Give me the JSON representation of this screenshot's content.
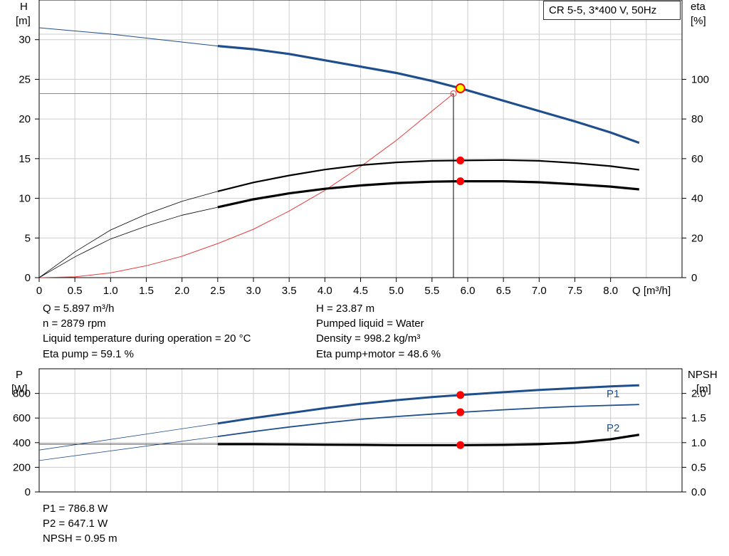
{
  "legend_title": "CR 5-5, 3*400 V, 50Hz",
  "colors": {
    "blue": "#1f4e8c",
    "red_curve": "#e83c3c",
    "dot": "#ff0000",
    "duty_fill": "#ffff00",
    "grid": "#cccccc"
  },
  "top": {
    "left_axis_label": [
      "H",
      "[m]"
    ],
    "right_axis_label": [
      "eta",
      "[%]"
    ],
    "x_unit_label": "Q [m³/h]"
  },
  "bottom": {
    "left_axis_label": [
      "P",
      "[W]"
    ],
    "right_axis_label": [
      "NPSH",
      "[m]"
    ],
    "p1_label": "P1",
    "p2_label": "P2"
  },
  "info_left": [
    "Q = 5.897 m³/h",
    "n = 2879 rpm",
    "Liquid temperature during operation = 20 °C",
    "Eta pump = 59.1 %"
  ],
  "info_right": [
    "H = 23.87 m",
    "Pumped liquid = Water",
    "Density = 998.2 kg/m³",
    "Eta pump+motor = 48.6 %"
  ],
  "info_bottom": [
    "P1 = 786.8 W",
    "P2 = 647.1 W",
    "NPSH = 0.95 m"
  ],
  "chart_data": [
    {
      "type": "line",
      "title": "CR 5-5, 3*400 V, 50Hz",
      "xlabel": "Q [m³/h]",
      "ylabel": "H [m]",
      "y2label": "eta [%]",
      "xlim": [
        0,
        9.0
      ],
      "ylim": [
        0,
        35
      ],
      "y2lim": [
        0,
        140
      ],
      "x_ticks": [
        0,
        0.5,
        1.0,
        1.5,
        2.0,
        2.5,
        3.0,
        3.5,
        4.0,
        4.5,
        5.0,
        5.5,
        6.0,
        6.5,
        7.0,
        7.5,
        8.0
      ],
      "x_tick_labels": [
        "0",
        "0.5",
        "1.0",
        "1.5",
        "2.0",
        "2.5",
        "3.0",
        "3.5",
        "4.0",
        "4.5",
        "5.0",
        "5.5",
        "6.0",
        "6.5",
        "7.0",
        "7.5",
        "8.0"
      ],
      "y_ticks": [
        0,
        5,
        10,
        15,
        20,
        25,
        30
      ],
      "y2_ticks": [
        0,
        20,
        40,
        60,
        80,
        100
      ],
      "grid": true,
      "series": [
        {
          "axis": "left",
          "extrapolated_x": [
            0,
            0.5,
            1.0,
            1.5,
            2.0,
            2.5
          ],
          "extrapolated_y": [
            31.5,
            31.1,
            30.7,
            30.2,
            29.7,
            29.2
          ],
          "x": [
            2.5,
            3.0,
            3.5,
            4.0,
            4.5,
            5.0,
            5.5,
            5.897,
            6.5,
            7.0,
            7.5,
            8.0,
            8.4
          ],
          "y": [
            29.2,
            28.8,
            28.2,
            27.4,
            26.6,
            25.8,
            24.8,
            23.87,
            22.3,
            21.0,
            19.7,
            18.3,
            17.0
          ]
        },
        {
          "axis": "right",
          "extrapolated_x": [
            0,
            0.5,
            1.0,
            1.5,
            2.0,
            2.5
          ],
          "extrapolated_y": [
            0,
            13,
            24,
            32,
            38.5,
            43.5
          ],
          "x": [
            2.5,
            3.0,
            3.5,
            4.0,
            4.5,
            5.0,
            5.5,
            5.897,
            6.5,
            7.0,
            7.5,
            8.0,
            8.4
          ],
          "y": [
            43.5,
            48,
            51.5,
            54.5,
            56.7,
            58.1,
            58.9,
            59.1,
            59.3,
            58.9,
            57.8,
            56.2,
            54.4
          ]
        },
        {
          "axis": "right",
          "extrapolated_x": [
            0,
            0.5,
            1.0,
            1.5,
            2.0,
            2.5
          ],
          "extrapolated_y": [
            0,
            10.5,
            19.5,
            26,
            31.5,
            35.5
          ],
          "x": [
            2.5,
            3.0,
            3.5,
            4.0,
            4.5,
            5.0,
            5.5,
            5.897,
            6.5,
            7.0,
            7.5,
            8.0,
            8.4
          ],
          "y": [
            35.5,
            39.5,
            42.5,
            44.8,
            46.5,
            47.7,
            48.4,
            48.6,
            48.6,
            48.1,
            47.1,
            45.9,
            44.5
          ]
        },
        {
          "axis": "left",
          "thin": true,
          "x": [
            0,
            0.5,
            1.0,
            1.5,
            2.0,
            2.5,
            3.0,
            3.5,
            4.0,
            4.5,
            5.0,
            5.5,
            5.8
          ],
          "y": [
            0,
            0.1,
            0.6,
            1.5,
            2.7,
            4.3,
            6.1,
            8.4,
            11.0,
            14.0,
            17.3,
            21.0,
            23.2
          ]
        }
      ],
      "duty_point": {
        "x": 5.897,
        "h": 23.87,
        "eta_pump": 59.1,
        "eta_total": 48.6
      },
      "reference_line": {
        "x": 5.8,
        "y": 23.2
      }
    },
    {
      "type": "line",
      "ylabel": "P [W]",
      "y2label": "NPSH [m]",
      "xlim": [
        0,
        9.0
      ],
      "ylim": [
        0,
        1000
      ],
      "y2lim": [
        0,
        2.5
      ],
      "y_ticks": [
        0,
        200,
        400,
        600,
        800
      ],
      "y2_ticks": [
        0.0,
        0.5,
        1.0,
        1.5,
        2.0
      ],
      "y2_tick_labels": [
        "0.0",
        "0.5",
        "1.0",
        "1.5",
        "2.0"
      ],
      "grid": true,
      "series": [
        {
          "name": "P1",
          "axis": "left",
          "extrapolated_x": [
            0,
            2.5
          ],
          "extrapolated_y": [
            340,
            556
          ],
          "x": [
            2.5,
            3.0,
            3.5,
            4.0,
            4.5,
            5.0,
            5.5,
            5.897,
            6.5,
            7.0,
            7.5,
            8.0,
            8.4
          ],
          "y": [
            556,
            600,
            640,
            680,
            715,
            745,
            770,
            786.8,
            810,
            828,
            843,
            857,
            866
          ]
        },
        {
          "name": "P2",
          "axis": "left",
          "extrapolated_x": [
            0,
            2.5
          ],
          "extrapolated_y": [
            255,
            450
          ],
          "x": [
            2.5,
            3.0,
            3.5,
            4.0,
            4.5,
            5.0,
            5.5,
            5.897,
            6.5,
            7.0,
            7.5,
            8.0,
            8.4
          ],
          "y": [
            450,
            490,
            527,
            560,
            590,
            612,
            632,
            647.1,
            667,
            682,
            694,
            703,
            710
          ]
        },
        {
          "axis": "right",
          "extrapolated_x": [
            0,
            2.5
          ],
          "extrapolated_y": [
            0.97,
            0.97
          ],
          "x": [
            2.5,
            3.0,
            3.5,
            4.0,
            4.5,
            5.0,
            5.5,
            5.897,
            6.5,
            7.0,
            7.5,
            8.0,
            8.4
          ],
          "y": [
            0.97,
            0.97,
            0.965,
            0.96,
            0.955,
            0.95,
            0.95,
            0.95,
            0.955,
            0.97,
            1.0,
            1.07,
            1.16
          ]
        }
      ],
      "duty_point": {
        "x": 5.897,
        "p1": 786.8,
        "p2": 647.1,
        "npsh": 0.95
      }
    }
  ]
}
